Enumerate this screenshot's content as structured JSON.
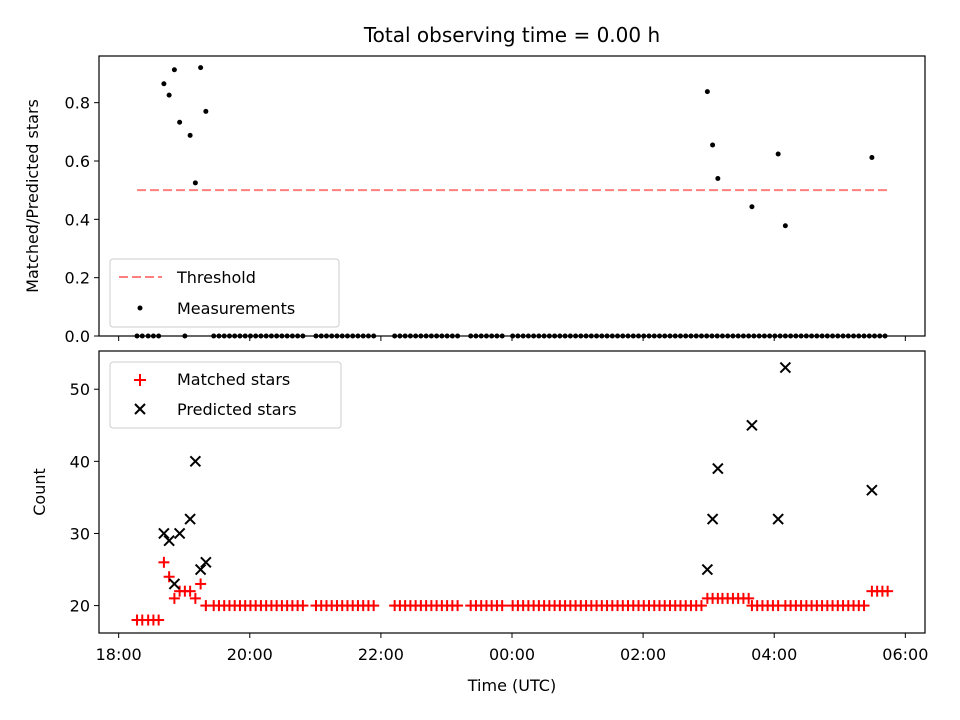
{
  "chart_data": {
    "type": "scatter",
    "title": "Total observing time = 0.00 h",
    "xlabel": "Time (UTC)",
    "x_axis": {
      "unit": "hours since 18:00 UTC",
      "range": [
        -0.3,
        12.3
      ],
      "ticks": [
        {
          "v": 0,
          "label": "18:00"
        },
        {
          "v": 2,
          "label": "20:00"
        },
        {
          "v": 4,
          "label": "22:00"
        },
        {
          "v": 6,
          "label": "00:00"
        },
        {
          "v": 8,
          "label": "02:00"
        },
        {
          "v": 10,
          "label": "04:00"
        },
        {
          "v": 12,
          "label": "06:00"
        }
      ]
    },
    "top_panel": {
      "ylabel": "Matched/Predicted stars",
      "ylim": [
        0.0,
        0.96
      ],
      "yticks": [
        "0.0",
        "0.2",
        "0.4",
        "0.6",
        "0.8"
      ],
      "threshold": {
        "name": "Threshold",
        "value": 0.5,
        "x_range": [
          0.28,
          11.75
        ],
        "color": "#ff7f7f"
      },
      "measurements": {
        "name": "Measurements",
        "color": "#000000",
        "points": [
          [
            0.28,
            0
          ],
          [
            0.36,
            0
          ],
          [
            0.45,
            0
          ],
          [
            0.53,
            0
          ],
          [
            0.61,
            0
          ],
          [
            0.69,
            0.865
          ],
          [
            0.77,
            0.826
          ],
          [
            0.85,
            0.913
          ],
          [
            0.93,
            0.733
          ],
          [
            1.01,
            0
          ],
          [
            1.09,
            0.688
          ],
          [
            1.17,
            0.525
          ],
          [
            1.25,
            0.92
          ],
          [
            1.33,
            0.77
          ],
          [
            1.45,
            0
          ],
          [
            1.53,
            0
          ],
          [
            1.61,
            0
          ],
          [
            1.69,
            0
          ],
          [
            1.77,
            0
          ],
          [
            1.85,
            0
          ],
          [
            1.93,
            0
          ],
          [
            2.01,
            0
          ],
          [
            2.09,
            0
          ],
          [
            2.17,
            0
          ],
          [
            2.25,
            0
          ],
          [
            2.33,
            0
          ],
          [
            2.41,
            0
          ],
          [
            2.49,
            0
          ],
          [
            2.57,
            0
          ],
          [
            2.65,
            0
          ],
          [
            2.73,
            0
          ],
          [
            2.81,
            0
          ],
          [
            3.01,
            0
          ],
          [
            3.09,
            0
          ],
          [
            3.17,
            0
          ],
          [
            3.25,
            0
          ],
          [
            3.33,
            0
          ],
          [
            3.41,
            0
          ],
          [
            3.49,
            0
          ],
          [
            3.57,
            0
          ],
          [
            3.65,
            0
          ],
          [
            3.73,
            0
          ],
          [
            3.81,
            0
          ],
          [
            3.89,
            0
          ],
          [
            4.21,
            0
          ],
          [
            4.29,
            0
          ],
          [
            4.37,
            0
          ],
          [
            4.45,
            0
          ],
          [
            4.53,
            0
          ],
          [
            4.61,
            0
          ],
          [
            4.69,
            0
          ],
          [
            4.77,
            0
          ],
          [
            4.85,
            0
          ],
          [
            4.93,
            0
          ],
          [
            5.01,
            0
          ],
          [
            5.09,
            0
          ],
          [
            5.17,
            0
          ],
          [
            5.37,
            0
          ],
          [
            5.45,
            0
          ],
          [
            5.53,
            0
          ],
          [
            5.61,
            0
          ],
          [
            5.69,
            0
          ],
          [
            5.77,
            0
          ],
          [
            5.85,
            0
          ],
          [
            6.01,
            0
          ],
          [
            6.09,
            0
          ],
          [
            6.17,
            0
          ],
          [
            6.25,
            0
          ],
          [
            6.33,
            0
          ],
          [
            6.41,
            0
          ],
          [
            6.49,
            0
          ],
          [
            6.57,
            0
          ],
          [
            6.65,
            0
          ],
          [
            6.73,
            0
          ],
          [
            6.81,
            0
          ],
          [
            6.89,
            0
          ],
          [
            6.97,
            0
          ],
          [
            7.05,
            0
          ],
          [
            7.13,
            0
          ],
          [
            7.21,
            0
          ],
          [
            7.29,
            0
          ],
          [
            7.37,
            0
          ],
          [
            7.45,
            0
          ],
          [
            7.53,
            0
          ],
          [
            7.61,
            0
          ],
          [
            7.69,
            0
          ],
          [
            7.77,
            0
          ],
          [
            7.85,
            0
          ],
          [
            7.93,
            0
          ],
          [
            8.01,
            0
          ],
          [
            8.09,
            0
          ],
          [
            8.17,
            0
          ],
          [
            8.25,
            0
          ],
          [
            8.33,
            0
          ],
          [
            8.41,
            0
          ],
          [
            8.49,
            0
          ],
          [
            8.57,
            0
          ],
          [
            8.65,
            0
          ],
          [
            8.73,
            0
          ],
          [
            8.81,
            0
          ],
          [
            8.89,
            0
          ],
          [
            8.97,
            0
          ],
          [
            9.05,
            0
          ],
          [
            9.13,
            0
          ],
          [
            9.21,
            0
          ],
          [
            9.29,
            0
          ],
          [
            9.37,
            0
          ],
          [
            9.45,
            0
          ],
          [
            9.53,
            0
          ],
          [
            9.61,
            0
          ],
          [
            9.69,
            0
          ],
          [
            9.77,
            0
          ],
          [
            9.85,
            0
          ],
          [
            9.93,
            0
          ],
          [
            10.01,
            0
          ],
          [
            10.09,
            0
          ],
          [
            10.17,
            0
          ],
          [
            10.25,
            0
          ],
          [
            10.33,
            0
          ],
          [
            10.41,
            0
          ],
          [
            10.49,
            0
          ],
          [
            10.57,
            0
          ],
          [
            10.65,
            0
          ],
          [
            10.73,
            0
          ],
          [
            10.81,
            0
          ],
          [
            10.89,
            0
          ],
          [
            10.97,
            0
          ],
          [
            11.05,
            0
          ],
          [
            11.13,
            0
          ],
          [
            11.21,
            0
          ],
          [
            11.29,
            0
          ],
          [
            11.37,
            0
          ],
          [
            11.45,
            0
          ],
          [
            11.53,
            0
          ],
          [
            11.61,
            0
          ],
          [
            11.69,
            0
          ],
          [
            8.98,
            0.838
          ],
          [
            9.06,
            0.655
          ],
          [
            9.14,
            0.54
          ],
          [
            9.66,
            0.443
          ],
          [
            10.06,
            0.624
          ],
          [
            10.17,
            0.378
          ],
          [
            11.49,
            0.612
          ]
        ]
      },
      "legend": [
        {
          "name": "Threshold",
          "style": "dashed-line",
          "color": "#ff7f7f"
        },
        {
          "name": "Measurements",
          "style": "dot",
          "color": "#000000"
        }
      ],
      "legend_location": "lower-left"
    },
    "bottom_panel": {
      "ylabel": "Count",
      "ylim": [
        16.2,
        55.3
      ],
      "yticks": [
        "20",
        "30",
        "40",
        "50"
      ],
      "matched": {
        "name": "Matched stars",
        "marker": "plus",
        "color": "#ff0000",
        "points": [
          [
            0.28,
            18
          ],
          [
            0.36,
            18
          ],
          [
            0.45,
            18
          ],
          [
            0.53,
            18
          ],
          [
            0.61,
            18
          ],
          [
            0.69,
            26
          ],
          [
            0.77,
            24
          ],
          [
            0.85,
            21
          ],
          [
            0.93,
            22
          ],
          [
            1.01,
            22
          ],
          [
            1.09,
            22
          ],
          [
            1.17,
            21
          ],
          [
            1.25,
            23
          ],
          [
            1.33,
            20
          ],
          [
            1.45,
            20
          ],
          [
            1.53,
            20
          ],
          [
            1.61,
            20
          ],
          [
            1.69,
            20
          ],
          [
            1.77,
            20
          ],
          [
            1.85,
            20
          ],
          [
            1.93,
            20
          ],
          [
            2.01,
            20
          ],
          [
            2.09,
            20
          ],
          [
            2.17,
            20
          ],
          [
            2.25,
            20
          ],
          [
            2.33,
            20
          ],
          [
            2.41,
            20
          ],
          [
            2.49,
            20
          ],
          [
            2.57,
            20
          ],
          [
            2.65,
            20
          ],
          [
            2.73,
            20
          ],
          [
            2.81,
            20
          ],
          [
            3.01,
            20
          ],
          [
            3.09,
            20
          ],
          [
            3.17,
            20
          ],
          [
            3.25,
            20
          ],
          [
            3.33,
            20
          ],
          [
            3.41,
            20
          ],
          [
            3.49,
            20
          ],
          [
            3.57,
            20
          ],
          [
            3.65,
            20
          ],
          [
            3.73,
            20
          ],
          [
            3.81,
            20
          ],
          [
            3.89,
            20
          ],
          [
            4.21,
            20
          ],
          [
            4.29,
            20
          ],
          [
            4.37,
            20
          ],
          [
            4.45,
            20
          ],
          [
            4.53,
            20
          ],
          [
            4.61,
            20
          ],
          [
            4.69,
            20
          ],
          [
            4.77,
            20
          ],
          [
            4.85,
            20
          ],
          [
            4.93,
            20
          ],
          [
            5.01,
            20
          ],
          [
            5.09,
            20
          ],
          [
            5.17,
            20
          ],
          [
            5.37,
            20
          ],
          [
            5.45,
            20
          ],
          [
            5.53,
            20
          ],
          [
            5.61,
            20
          ],
          [
            5.69,
            20
          ],
          [
            5.77,
            20
          ],
          [
            5.85,
            20
          ],
          [
            6.01,
            20
          ],
          [
            6.09,
            20
          ],
          [
            6.17,
            20
          ],
          [
            6.25,
            20
          ],
          [
            6.33,
            20
          ],
          [
            6.41,
            20
          ],
          [
            6.49,
            20
          ],
          [
            6.57,
            20
          ],
          [
            6.65,
            20
          ],
          [
            6.73,
            20
          ],
          [
            6.81,
            20
          ],
          [
            6.89,
            20
          ],
          [
            6.97,
            20
          ],
          [
            7.05,
            20
          ],
          [
            7.13,
            20
          ],
          [
            7.21,
            20
          ],
          [
            7.29,
            20
          ],
          [
            7.37,
            20
          ],
          [
            7.45,
            20
          ],
          [
            7.53,
            20
          ],
          [
            7.61,
            20
          ],
          [
            7.69,
            20
          ],
          [
            7.77,
            20
          ],
          [
            7.85,
            20
          ],
          [
            7.93,
            20
          ],
          [
            8.01,
            20
          ],
          [
            8.09,
            20
          ],
          [
            8.17,
            20
          ],
          [
            8.25,
            20
          ],
          [
            8.33,
            20
          ],
          [
            8.41,
            20
          ],
          [
            8.49,
            20
          ],
          [
            8.57,
            20
          ],
          [
            8.65,
            20
          ],
          [
            8.73,
            20
          ],
          [
            8.81,
            20
          ],
          [
            8.89,
            20
          ],
          [
            8.98,
            21
          ],
          [
            9.06,
            21
          ],
          [
            9.14,
            21
          ],
          [
            9.21,
            21
          ],
          [
            9.29,
            21
          ],
          [
            9.37,
            21
          ],
          [
            9.45,
            21
          ],
          [
            9.53,
            21
          ],
          [
            9.61,
            21
          ],
          [
            9.66,
            20
          ],
          [
            9.74,
            20
          ],
          [
            9.82,
            20
          ],
          [
            9.9,
            20
          ],
          [
            9.98,
            20
          ],
          [
            10.06,
            20
          ],
          [
            10.17,
            20
          ],
          [
            10.25,
            20
          ],
          [
            10.33,
            20
          ],
          [
            10.41,
            20
          ],
          [
            10.49,
            20
          ],
          [
            10.57,
            20
          ],
          [
            10.65,
            20
          ],
          [
            10.73,
            20
          ],
          [
            10.81,
            20
          ],
          [
            10.89,
            20
          ],
          [
            10.97,
            20
          ],
          [
            11.05,
            20
          ],
          [
            11.13,
            20
          ],
          [
            11.21,
            20
          ],
          [
            11.29,
            20
          ],
          [
            11.37,
            20
          ],
          [
            11.49,
            22
          ],
          [
            11.57,
            22
          ],
          [
            11.65,
            22
          ],
          [
            11.73,
            22
          ]
        ]
      },
      "predicted": {
        "name": "Predicted stars",
        "marker": "x",
        "color": "#000000",
        "points": [
          [
            0.69,
            30
          ],
          [
            0.77,
            29
          ],
          [
            0.85,
            23
          ],
          [
            0.93,
            30
          ],
          [
            1.09,
            32
          ],
          [
            1.17,
            40
          ],
          [
            1.25,
            25
          ],
          [
            1.33,
            26
          ],
          [
            8.98,
            25
          ],
          [
            9.06,
            32
          ],
          [
            9.14,
            39
          ],
          [
            9.66,
            45
          ],
          [
            10.06,
            32
          ],
          [
            10.17,
            53
          ],
          [
            11.49,
            36
          ]
        ]
      },
      "legend": [
        {
          "name": "Matched stars",
          "style": "plus",
          "color": "#ff0000"
        },
        {
          "name": "Predicted stars",
          "style": "x",
          "color": "#000000"
        }
      ],
      "legend_location": "upper-left"
    }
  }
}
